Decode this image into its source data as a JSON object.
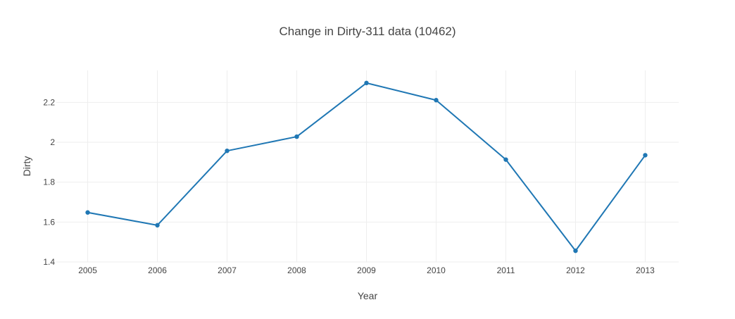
{
  "chart_data": {
    "type": "line",
    "title": "Change in Dirty-311 data (10462)",
    "xlabel": "Year",
    "ylabel": "Dirty",
    "x": [
      2005,
      2006,
      2007,
      2008,
      2009,
      2010,
      2011,
      2012,
      2013
    ],
    "x_tick_labels": [
      "2005",
      "2006",
      "2007",
      "2008",
      "2009",
      "2010",
      "2011",
      "2012",
      "2013"
    ],
    "y_tick_values": [
      1.4,
      1.6,
      1.8,
      2,
      2.2
    ],
    "y_tick_labels": [
      "1.4",
      "1.6",
      "1.8",
      "2",
      "2.2"
    ],
    "ylim": [
      1.4,
      2.36
    ],
    "xlim": [
      2004.55,
      2013.48
    ],
    "series": [
      {
        "values": [
          1.648,
          1.584,
          1.957,
          2.028,
          2.297,
          2.211,
          1.913,
          1.456,
          1.935
        ],
        "color": "#1f77b4"
      }
    ],
    "grid": true,
    "legend": "none"
  }
}
